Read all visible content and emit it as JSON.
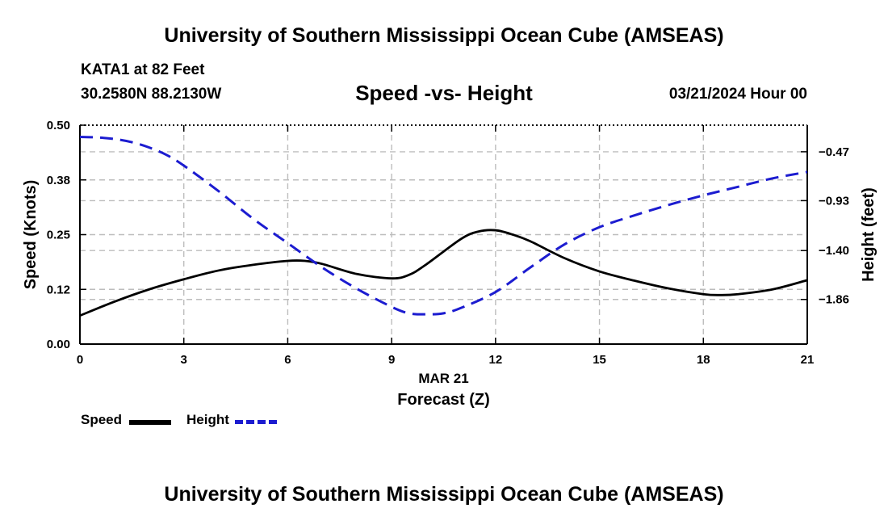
{
  "page": {
    "title": "University of Southern Mississippi Ocean Cube (AMSEAS)",
    "footer_title": "University of Southern Mississippi Ocean Cube (AMSEAS)",
    "station": "KATA1 at 82 Feet",
    "coordinates": "30.2580N  88.2130W",
    "subtitle": "Speed -vs- Height",
    "datetime": "03/21/2024 Hour 00"
  },
  "legend": {
    "speed_label": "Speed",
    "height_label": "Height"
  },
  "colors": {
    "speed": "#000000",
    "height": "#1c1cd0",
    "grid": "#bdbdbd"
  },
  "chart_data": {
    "type": "line",
    "title": "Speed -vs- Height",
    "xlabel": "Forecast (Z)",
    "xlabel_date": "MAR 21",
    "ylabel": "Speed (Knots)",
    "y2label": "Height (feet)",
    "xlim": [
      0,
      21
    ],
    "ylim": [
      0,
      0.5
    ],
    "y2lim": [
      -2.28,
      -0.22
    ],
    "xticks": [
      0,
      3,
      6,
      9,
      12,
      15,
      18,
      21
    ],
    "xtick_labels": [
      "0",
      "3",
      "6",
      "9",
      "12",
      "15",
      "18",
      "21"
    ],
    "yticks": [
      0.0,
      0.125,
      0.25,
      0.375,
      0.5
    ],
    "ytick_labels": [
      "0.00",
      "0.12",
      "0.25",
      "0.38",
      "0.50"
    ],
    "y2ticks": [
      -1.86,
      -1.4,
      -0.93,
      -0.47
    ],
    "y2tick_labels": [
      "−1.86",
      "−1.40",
      "−0.93",
      "−0.47"
    ],
    "grid": true,
    "series": [
      {
        "name": "Speed",
        "axis": "left",
        "style": "solid",
        "x": [
          0,
          1,
          2,
          3,
          4,
          5,
          6,
          6.5,
          7,
          8,
          9,
          9.5,
          10,
          11,
          11.5,
          12,
          12.5,
          13,
          14,
          15,
          16,
          17,
          18,
          18.5,
          19,
          20,
          21
        ],
        "values": [
          0.065,
          0.097,
          0.125,
          0.148,
          0.168,
          0.181,
          0.19,
          0.19,
          0.183,
          0.16,
          0.15,
          0.158,
          0.182,
          0.24,
          0.257,
          0.26,
          0.25,
          0.235,
          0.196,
          0.166,
          0.145,
          0.127,
          0.114,
          0.112,
          0.114,
          0.125,
          0.146
        ]
      },
      {
        "name": "Height",
        "axis": "right",
        "style": "dashed",
        "x": [
          0,
          0.5,
          1,
          1.5,
          2,
          2.5,
          3,
          4,
          5,
          6,
          7,
          8,
          9,
          9.5,
          10,
          10.5,
          11,
          12,
          13,
          14,
          15,
          16,
          17,
          18,
          19,
          20,
          21
        ],
        "values": [
          -0.33,
          -0.335,
          -0.35,
          -0.38,
          -0.43,
          -0.5,
          -0.6,
          -0.84,
          -1.1,
          -1.33,
          -1.56,
          -1.76,
          -1.93,
          -1.99,
          -2.0,
          -1.99,
          -1.94,
          -1.79,
          -1.56,
          -1.34,
          -1.18,
          -1.07,
          -0.97,
          -0.88,
          -0.8,
          -0.72,
          -0.66
        ]
      }
    ]
  }
}
